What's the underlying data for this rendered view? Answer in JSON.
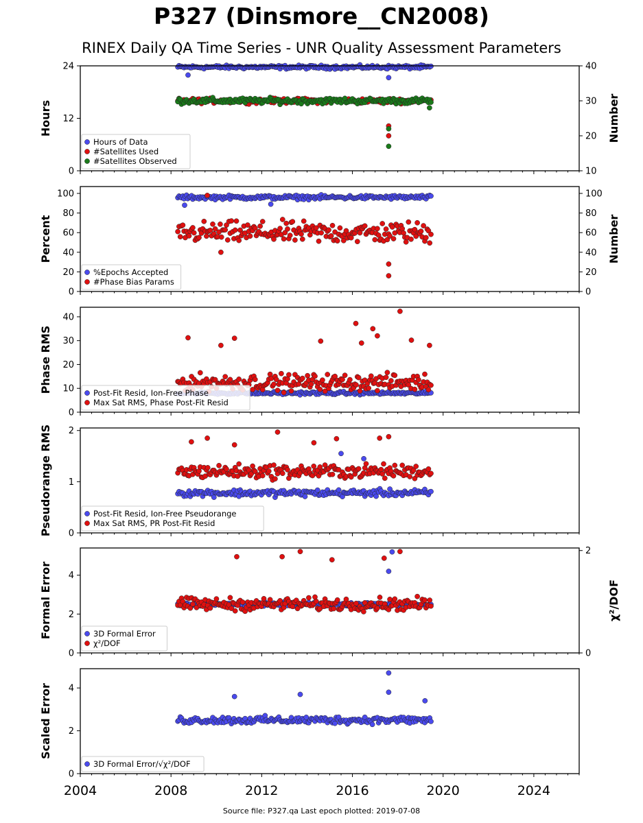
{
  "figure": {
    "title": "P327 (Dinsmore__CN2008)",
    "subtitle": "RINEX Daily QA Time Series - UNR Quality Assessment Parameters",
    "footer": "Source file: P327.qa Last epoch plotted: 2019-07-08",
    "x_ticks": [
      "2004",
      "2008",
      "2012",
      "2016",
      "2020",
      "2024"
    ]
  },
  "chart_data": [
    {
      "type": "scatter",
      "ylabel": "Hours",
      "y2label": "Number",
      "xlim": [
        2004,
        2026
      ],
      "ylim": [
        0,
        24
      ],
      "y2lim": [
        10,
        40
      ],
      "yticks": [
        "0",
        "12",
        "24"
      ],
      "y2ticks": [
        "10",
        "20",
        "30",
        "40"
      ],
      "legend": "lower-left",
      "series": [
        {
          "name": "Hours of Data",
          "color": "#4a4aee",
          "axis": "left",
          "level": 23.7,
          "spread": 0.6,
          "extra": [
            [
              2017.6,
              21.3
            ],
            [
              2008.75,
              21.9
            ]
          ]
        },
        {
          "name": "#Satellites Used",
          "color": "#e01010",
          "axis": "right",
          "level": 30,
          "spread": 1.0,
          "extra": [
            [
              2017.6,
              22.8
            ],
            [
              2017.6,
              20.0
            ],
            [
              2010.2,
              30.2
            ]
          ]
        },
        {
          "name": "#Satellites Observed",
          "color": "#1a7a1a",
          "axis": "right",
          "level": 30,
          "spread": 1.2,
          "extra": [
            [
              2017.6,
              22.0
            ],
            [
              2017.6,
              17.0
            ],
            [
              2019.4,
              28.0
            ]
          ]
        }
      ]
    },
    {
      "type": "scatter",
      "ylabel": "Percent",
      "y2label": "Number",
      "xlim": [
        2004,
        2026
      ],
      "ylim": [
        0,
        107
      ],
      "y2lim": [
        0,
        107
      ],
      "yticks": [
        "0",
        "20",
        "40",
        "60",
        "80",
        "100"
      ],
      "y2ticks": [
        "0",
        "20",
        "40",
        "60",
        "80",
        "100"
      ],
      "legend": "lower-left",
      "series": [
        {
          "name": "%Epochs Accepted",
          "color": "#4a4aee",
          "axis": "left",
          "level": 96,
          "spread": 3,
          "extra": [
            [
              2008.6,
              88
            ],
            [
              2012.4,
              89
            ]
          ]
        },
        {
          "name": "#Phase Bias Params",
          "color": "#e01010",
          "axis": "right",
          "level": 60,
          "spread": 16,
          "extra": [
            [
              2017.6,
              28
            ],
            [
              2017.6,
              16
            ],
            [
              2010.2,
              40
            ],
            [
              2009.6,
              98
            ]
          ]
        }
      ]
    },
    {
      "type": "scatter",
      "ylabel": "Phase RMS",
      "xlim": [
        2004,
        2026
      ],
      "ylim": [
        0,
        44
      ],
      "yticks": [
        "0",
        "10",
        "20",
        "30",
        "40"
      ],
      "legend": "lower-left",
      "series": [
        {
          "name": "Post-Fit Resid, Ion-Free Phase",
          "color": "#4a4aee",
          "axis": "left",
          "level": 8,
          "spread": 0.9,
          "extra": []
        },
        {
          "name": "Max Sat RMS, Phase Post-Fit Resid",
          "color": "#e01010",
          "axis": "left",
          "level": 12.5,
          "spread": 5,
          "extra": [
            [
              2018.1,
              42.3
            ],
            [
              2016.15,
              37.2
            ],
            [
              2016.9,
              35
            ],
            [
              2008.75,
              31.2
            ],
            [
              2010.8,
              31
            ],
            [
              2014.6,
              29.8
            ],
            [
              2018.6,
              30.2
            ],
            [
              2016.4,
              29
            ],
            [
              2019.4,
              28
            ],
            [
              2010.2,
              28
            ],
            [
              2017.1,
              32
            ]
          ]
        }
      ]
    },
    {
      "type": "scatter",
      "ylabel": "Pseudorange RMS",
      "xlim": [
        2004,
        2026
      ],
      "ylim": [
        0,
        2.05
      ],
      "yticks": [
        "0",
        "1",
        "2"
      ],
      "legend": "lower-left",
      "series": [
        {
          "name": "Post-Fit Resid, Ion-Free Pseudorange",
          "color": "#4a4aee",
          "axis": "left",
          "level": 0.78,
          "spread": 0.1,
          "extra": [
            [
              2015.5,
              1.55
            ],
            [
              2016.5,
              1.45
            ]
          ]
        },
        {
          "name": "Max Sat RMS, PR Post-Fit Resid",
          "color": "#e01010",
          "axis": "left",
          "level": 1.2,
          "spread": 0.2,
          "extra": [
            [
              2012.7,
              1.97
            ],
            [
              2017.6,
              1.88
            ],
            [
              2017.2,
              1.85
            ],
            [
              2009.6,
              1.85
            ],
            [
              2015.3,
              1.84
            ],
            [
              2008.9,
              1.78
            ],
            [
              2014.3,
              1.76
            ],
            [
              2010.8,
              1.72
            ]
          ]
        }
      ]
    },
    {
      "type": "scatter",
      "ylabel": "Formal Error",
      "y2label": "χ²/DOF",
      "xlim": [
        2004,
        2026
      ],
      "ylim": [
        0,
        5.4
      ],
      "y2lim": [
        0,
        2.05
      ],
      "yticks": [
        "0",
        "2",
        "4"
      ],
      "y2ticks": [
        "0",
        "2"
      ],
      "legend": "lower-left",
      "series": [
        {
          "name": "3D Formal Error",
          "color": "#4a4aee",
          "axis": "left",
          "level": 2.5,
          "spread": 0.15,
          "extra": [
            [
              2017.75,
              5.2
            ],
            [
              2017.6,
              4.2
            ]
          ]
        },
        {
          "name": "χ²/DOF",
          "color": "#e01010",
          "axis": "right",
          "level": 0.95,
          "spread": 0.18,
          "extra": [
            [
              2013.7,
              1.98
            ],
            [
              2018.1,
              1.98
            ],
            [
              2010.9,
              1.88
            ],
            [
              2012.9,
              1.88
            ],
            [
              2017.4,
              1.85
            ],
            [
              2015.1,
              1.82
            ]
          ]
        }
      ]
    },
    {
      "type": "scatter",
      "ylabel": "Scaled Error",
      "xlim": [
        2004,
        2026
      ],
      "ylim": [
        0,
        4.9
      ],
      "yticks": [
        "0",
        "2",
        "4"
      ],
      "legend": "lower-left",
      "series": [
        {
          "name": "3D Formal Error/√χ²/DOF",
          "color": "#4a4aee",
          "axis": "left",
          "level": 2.5,
          "spread": 0.25,
          "extra": [
            [
              2017.6,
              4.7
            ],
            [
              2017.6,
              3.8
            ],
            [
              2013.7,
              3.7
            ],
            [
              2010.8,
              3.6
            ],
            [
              2019.2,
              3.4
            ]
          ]
        }
      ]
    }
  ]
}
